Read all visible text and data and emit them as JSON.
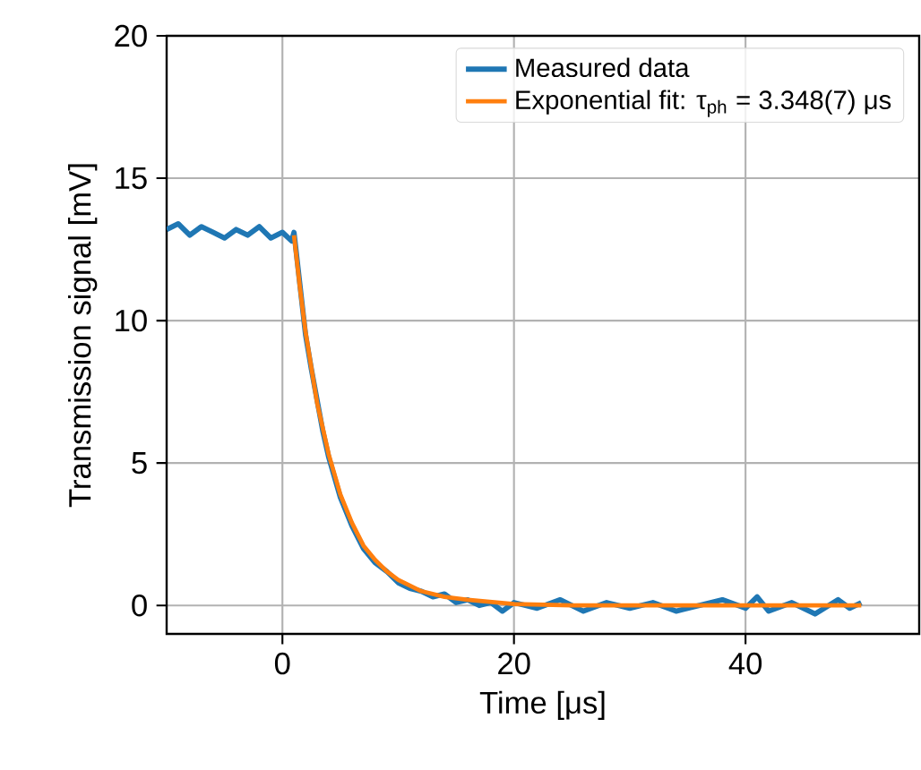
{
  "chart_data": {
    "type": "line",
    "xlabel": "Time [μs]",
    "ylabel": "Transmission signal [mV]",
    "xlim": [
      -10,
      55
    ],
    "ylim": [
      -1,
      20
    ],
    "xticks": [
      0,
      20,
      40
    ],
    "yticks": [
      0,
      5,
      10,
      15,
      20
    ],
    "grid": true,
    "legend": "top right",
    "series": [
      {
        "name": "Measured data",
        "color": "#1f77b4",
        "x": [
          -10,
          -9,
          -8,
          -7,
          -6,
          -5,
          -4,
          -3,
          -2,
          -1,
          0,
          0.8,
          1,
          1.5,
          2,
          2.5,
          3,
          3.5,
          4,
          5,
          6,
          7,
          8,
          9,
          10,
          11,
          12,
          13,
          14,
          15,
          16,
          17,
          18,
          19,
          20,
          22,
          24,
          26,
          28,
          30,
          32,
          34,
          36,
          38,
          40,
          41,
          42,
          44,
          46,
          48,
          49,
          50
        ],
        "values": [
          13.2,
          13.4,
          13.0,
          13.3,
          13.1,
          12.9,
          13.2,
          13.0,
          13.3,
          12.9,
          13.1,
          12.8,
          13.1,
          11.3,
          9.5,
          8.3,
          7.2,
          6.1,
          5.2,
          3.8,
          2.8,
          2.0,
          1.5,
          1.2,
          0.8,
          0.6,
          0.5,
          0.3,
          0.4,
          0.1,
          0.2,
          0.0,
          0.1,
          -0.2,
          0.1,
          -0.1,
          0.2,
          -0.2,
          0.1,
          -0.1,
          0.1,
          -0.2,
          0.0,
          0.2,
          -0.1,
          0.3,
          -0.2,
          0.1,
          -0.3,
          0.2,
          -0.1,
          0.1
        ]
      },
      {
        "name": "Exponential fit: τ$_{ph}$ = 3.348(7) μs",
        "color": "#ff7f0e",
        "x": [
          1,
          1.5,
          2,
          3,
          4,
          5,
          6,
          7,
          8,
          9,
          10,
          12,
          14,
          16,
          20,
          25,
          30,
          40,
          50
        ],
        "values": [
          13.0,
          11.2,
          9.6,
          7.1,
          5.3,
          3.9,
          2.9,
          2.1,
          1.6,
          1.2,
          0.9,
          0.5,
          0.3,
          0.2,
          0.05,
          0.0,
          0.0,
          0.0,
          0.0
        ]
      }
    ]
  }
}
